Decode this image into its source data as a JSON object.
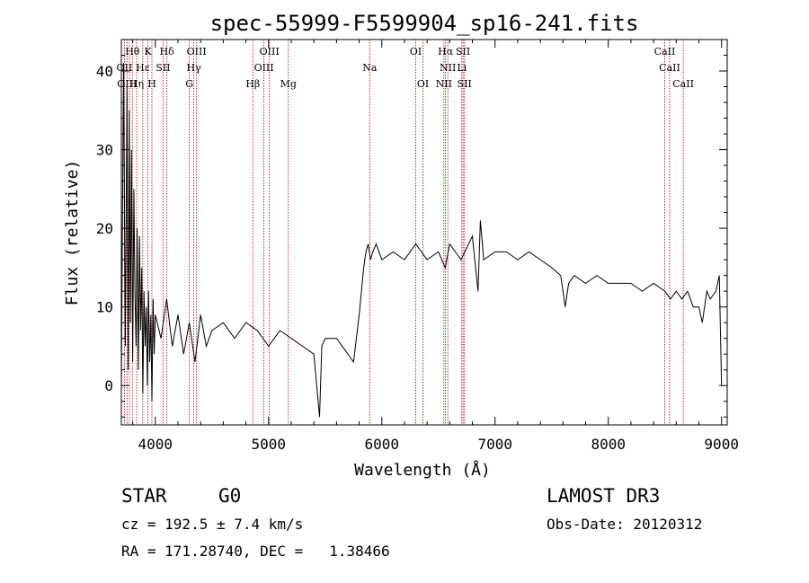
{
  "chart_data": {
    "type": "line",
    "title": "spec-55999-F5599904_sp16-241.fits",
    "xlabel": "Wavelength (Å)",
    "ylabel": "Flux (relative)",
    "xlim": [
      3700,
      9050
    ],
    "ylim": [
      -5,
      44
    ],
    "xticks": [
      4000,
      5000,
      6000,
      7000,
      8000,
      9000
    ],
    "yticks": [
      0,
      10,
      20,
      30,
      40
    ],
    "grid": false,
    "series": [
      {
        "x": [
          3700,
          3720,
          3735,
          3750,
          3760,
          3770,
          3780,
          3790,
          3800,
          3810,
          3820,
          3830,
          3840,
          3850,
          3860,
          3870,
          3880,
          3890,
          3900,
          3910,
          3920,
          3930,
          3940,
          3950,
          3960,
          3970,
          3980,
          3990,
          4000,
          4050,
          4100,
          4150,
          4200,
          4250,
          4300,
          4350,
          4400,
          4450,
          4500,
          4600,
          4700,
          4800,
          4900,
          5000,
          5100,
          5200,
          5300,
          5400,
          5450,
          5470,
          5500,
          5600,
          5700,
          5750,
          5800,
          5820,
          5840,
          5860,
          5880,
          5900,
          5920,
          5950,
          6000,
          6100,
          6200,
          6300,
          6400,
          6500,
          6560,
          6600,
          6700,
          6800,
          6850,
          6870,
          6900,
          7000,
          7100,
          7200,
          7300,
          7400,
          7500,
          7580,
          7620,
          7650,
          7700,
          7800,
          7900,
          8000,
          8100,
          8200,
          8300,
          8400,
          8500,
          8550,
          8600,
          8650,
          8700,
          8750,
          8800,
          8830,
          8870,
          8900,
          8950,
          8980,
          9000
        ],
        "y": [
          0,
          41,
          5,
          38,
          2,
          35,
          8,
          30,
          3,
          25,
          12,
          5,
          20,
          2,
          19,
          7,
          15,
          -1,
          12,
          5,
          10,
          0,
          12,
          3,
          9,
          -2,
          11,
          4,
          9,
          6,
          11,
          5,
          9,
          4,
          8,
          3,
          9,
          5,
          7,
          8,
          6,
          8,
          7,
          5,
          7,
          6,
          5,
          4,
          -4,
          5,
          6,
          6,
          4,
          3,
          9,
          12,
          15,
          17,
          18,
          16,
          17,
          18,
          16,
          17,
          16,
          18,
          16,
          17,
          15,
          18,
          16,
          19,
          12,
          21,
          16,
          17,
          17,
          16,
          17,
          16,
          15,
          14,
          10,
          13,
          14,
          13,
          14,
          13,
          13,
          13,
          12,
          13,
          12,
          11,
          12,
          11,
          12,
          10,
          10,
          8,
          12,
          11,
          12,
          14,
          0
        ]
      }
    ],
    "annotations": {
      "lines": [
        3727,
        3750,
        3771,
        3798,
        3835,
        3889,
        3934,
        3970,
        4068,
        4102,
        4300,
        4340,
        4364,
        4861,
        4959,
        5007,
        5175,
        5893,
        6300,
        6364,
        6548,
        6563,
        6583,
        6707,
        6717,
        6731,
        8498,
        8542,
        8662
      ],
      "labels": [
        {
          "text": "Hθ",
          "x": 3798,
          "row": 0
        },
        {
          "text": "K",
          "x": 3934,
          "row": 0
        },
        {
          "text": "Hδ",
          "x": 4102,
          "row": 0
        },
        {
          "text": "OIII",
          "x": 4364,
          "row": 0
        },
        {
          "text": "OIII",
          "x": 5007,
          "row": 0
        },
        {
          "text": "OI",
          "x": 6300,
          "row": 0
        },
        {
          "text": "Hα",
          "x": 6563,
          "row": 0
        },
        {
          "text": "SII",
          "x": 6717,
          "row": 0
        },
        {
          "text": "CaII",
          "x": 8498,
          "row": 0
        },
        {
          "text": "OII",
          "x": 3727,
          "row": 1
        },
        {
          "text": "Hε",
          "x": 3889,
          "row": 1
        },
        {
          "text": "SII",
          "x": 4068,
          "row": 1
        },
        {
          "text": "Hγ",
          "x": 4340,
          "row": 1
        },
        {
          "text": "OIII",
          "x": 4959,
          "row": 1
        },
        {
          "text": "Na",
          "x": 5893,
          "row": 1
        },
        {
          "text": "NII",
          "x": 6583,
          "row": 1
        },
        {
          "text": "Li",
          "x": 6707,
          "row": 1
        },
        {
          "text": "CaII",
          "x": 8542,
          "row": 1
        },
        {
          "text": "OIII",
          "x": 3750,
          "row": 2
        },
        {
          "text": "Hη",
          "x": 3835,
          "row": 2
        },
        {
          "text": "H",
          "x": 3970,
          "row": 2
        },
        {
          "text": "G",
          "x": 4300,
          "row": 2
        },
        {
          "text": "Hβ",
          "x": 4861,
          "row": 2
        },
        {
          "text": "Mg",
          "x": 5175,
          "row": 2
        },
        {
          "text": "OI",
          "x": 6364,
          "row": 2
        },
        {
          "text": "NII",
          "x": 6548,
          "row": 2
        },
        {
          "text": "SII",
          "x": 6731,
          "row": 2
        },
        {
          "text": "CaII",
          "x": 8662,
          "row": 2
        }
      ]
    }
  },
  "info": {
    "class": "STAR",
    "subclass": "G0",
    "survey": "LAMOST DR3",
    "velocity": "cz = 192.5 ± 7.4 km/s",
    "obs_date": "Obs-Date: 20120312",
    "coords": "RA = 171.28740, DEC =   1.38466"
  },
  "colors": {
    "line_markers": "#aa0000",
    "spectrum": "#000000",
    "axis": "#000000"
  }
}
